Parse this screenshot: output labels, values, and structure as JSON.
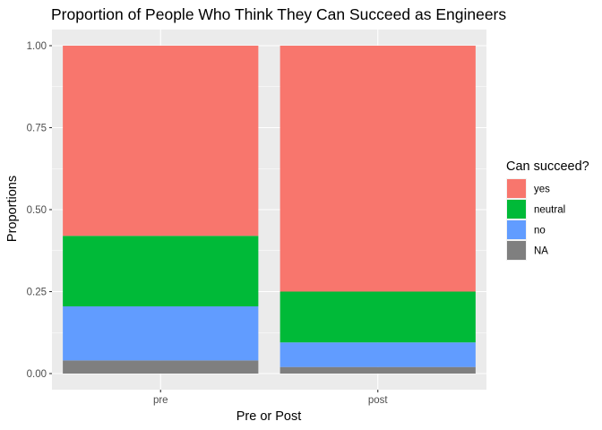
{
  "chart_data": {
    "type": "bar",
    "stacked": true,
    "title": "Proportion of People Who Think They Can Succeed as Engineers",
    "xlabel": "Pre or Post",
    "ylabel": "Proportions",
    "categories": [
      "pre",
      "post"
    ],
    "ylim": [
      0,
      1
    ],
    "yticks": [
      0,
      0.25,
      0.5,
      0.75,
      1
    ],
    "ytick_labels": [
      "0.00",
      "0.25",
      "0.50",
      "0.75",
      "1.00"
    ],
    "grid": true,
    "legend": {
      "title": "Can succeed?",
      "position": "right"
    },
    "series": [
      {
        "name": "NA",
        "color": "#7f7f7f",
        "values": [
          0.04,
          0.02
        ]
      },
      {
        "name": "no",
        "color": "#619cff",
        "values": [
          0.165,
          0.075
        ]
      },
      {
        "name": "neutral",
        "color": "#00ba38",
        "values": [
          0.215,
          0.155
        ]
      },
      {
        "name": "yes",
        "color": "#f8766d",
        "values": [
          0.58,
          0.75
        ]
      }
    ],
    "legend_order": [
      "yes",
      "neutral",
      "no",
      "NA"
    ],
    "panel_background": "#ebebeb",
    "grid_color": "#ffffff"
  }
}
